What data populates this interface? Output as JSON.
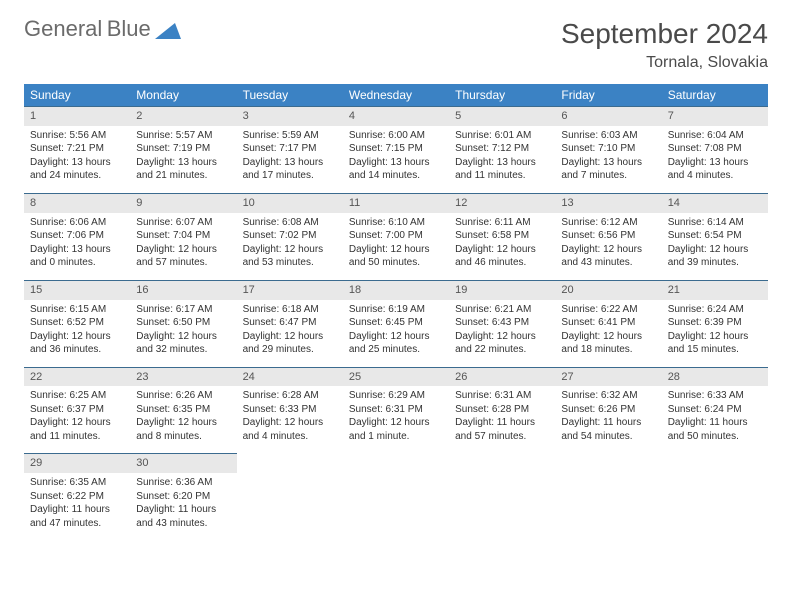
{
  "logo": {
    "word1": "General",
    "word2": "Blue"
  },
  "title": "September 2024",
  "location": "Tornala, Slovakia",
  "colors": {
    "header_bg": "#3b82c4",
    "header_text": "#ffffff",
    "daynum_bg": "#e8e8e8",
    "border": "#3b6b8f",
    "body_text": "#333333",
    "logo_gray": "#6b6b6b",
    "logo_blue": "#3b82c4"
  },
  "weekdays": [
    "Sunday",
    "Monday",
    "Tuesday",
    "Wednesday",
    "Thursday",
    "Friday",
    "Saturday"
  ],
  "rows": [
    [
      {
        "n": "1",
        "sr": "Sunrise: 5:56 AM",
        "ss": "Sunset: 7:21 PM",
        "d1": "Daylight: 13 hours",
        "d2": "and 24 minutes."
      },
      {
        "n": "2",
        "sr": "Sunrise: 5:57 AM",
        "ss": "Sunset: 7:19 PM",
        "d1": "Daylight: 13 hours",
        "d2": "and 21 minutes."
      },
      {
        "n": "3",
        "sr": "Sunrise: 5:59 AM",
        "ss": "Sunset: 7:17 PM",
        "d1": "Daylight: 13 hours",
        "d2": "and 17 minutes."
      },
      {
        "n": "4",
        "sr": "Sunrise: 6:00 AM",
        "ss": "Sunset: 7:15 PM",
        "d1": "Daylight: 13 hours",
        "d2": "and 14 minutes."
      },
      {
        "n": "5",
        "sr": "Sunrise: 6:01 AM",
        "ss": "Sunset: 7:12 PM",
        "d1": "Daylight: 13 hours",
        "d2": "and 11 minutes."
      },
      {
        "n": "6",
        "sr": "Sunrise: 6:03 AM",
        "ss": "Sunset: 7:10 PM",
        "d1": "Daylight: 13 hours",
        "d2": "and 7 minutes."
      },
      {
        "n": "7",
        "sr": "Sunrise: 6:04 AM",
        "ss": "Sunset: 7:08 PM",
        "d1": "Daylight: 13 hours",
        "d2": "and 4 minutes."
      }
    ],
    [
      {
        "n": "8",
        "sr": "Sunrise: 6:06 AM",
        "ss": "Sunset: 7:06 PM",
        "d1": "Daylight: 13 hours",
        "d2": "and 0 minutes."
      },
      {
        "n": "9",
        "sr": "Sunrise: 6:07 AM",
        "ss": "Sunset: 7:04 PM",
        "d1": "Daylight: 12 hours",
        "d2": "and 57 minutes."
      },
      {
        "n": "10",
        "sr": "Sunrise: 6:08 AM",
        "ss": "Sunset: 7:02 PM",
        "d1": "Daylight: 12 hours",
        "d2": "and 53 minutes."
      },
      {
        "n": "11",
        "sr": "Sunrise: 6:10 AM",
        "ss": "Sunset: 7:00 PM",
        "d1": "Daylight: 12 hours",
        "d2": "and 50 minutes."
      },
      {
        "n": "12",
        "sr": "Sunrise: 6:11 AM",
        "ss": "Sunset: 6:58 PM",
        "d1": "Daylight: 12 hours",
        "d2": "and 46 minutes."
      },
      {
        "n": "13",
        "sr": "Sunrise: 6:12 AM",
        "ss": "Sunset: 6:56 PM",
        "d1": "Daylight: 12 hours",
        "d2": "and 43 minutes."
      },
      {
        "n": "14",
        "sr": "Sunrise: 6:14 AM",
        "ss": "Sunset: 6:54 PM",
        "d1": "Daylight: 12 hours",
        "d2": "and 39 minutes."
      }
    ],
    [
      {
        "n": "15",
        "sr": "Sunrise: 6:15 AM",
        "ss": "Sunset: 6:52 PM",
        "d1": "Daylight: 12 hours",
        "d2": "and 36 minutes."
      },
      {
        "n": "16",
        "sr": "Sunrise: 6:17 AM",
        "ss": "Sunset: 6:50 PM",
        "d1": "Daylight: 12 hours",
        "d2": "and 32 minutes."
      },
      {
        "n": "17",
        "sr": "Sunrise: 6:18 AM",
        "ss": "Sunset: 6:47 PM",
        "d1": "Daylight: 12 hours",
        "d2": "and 29 minutes."
      },
      {
        "n": "18",
        "sr": "Sunrise: 6:19 AM",
        "ss": "Sunset: 6:45 PM",
        "d1": "Daylight: 12 hours",
        "d2": "and 25 minutes."
      },
      {
        "n": "19",
        "sr": "Sunrise: 6:21 AM",
        "ss": "Sunset: 6:43 PM",
        "d1": "Daylight: 12 hours",
        "d2": "and 22 minutes."
      },
      {
        "n": "20",
        "sr": "Sunrise: 6:22 AM",
        "ss": "Sunset: 6:41 PM",
        "d1": "Daylight: 12 hours",
        "d2": "and 18 minutes."
      },
      {
        "n": "21",
        "sr": "Sunrise: 6:24 AM",
        "ss": "Sunset: 6:39 PM",
        "d1": "Daylight: 12 hours",
        "d2": "and 15 minutes."
      }
    ],
    [
      {
        "n": "22",
        "sr": "Sunrise: 6:25 AM",
        "ss": "Sunset: 6:37 PM",
        "d1": "Daylight: 12 hours",
        "d2": "and 11 minutes."
      },
      {
        "n": "23",
        "sr": "Sunrise: 6:26 AM",
        "ss": "Sunset: 6:35 PM",
        "d1": "Daylight: 12 hours",
        "d2": "and 8 minutes."
      },
      {
        "n": "24",
        "sr": "Sunrise: 6:28 AM",
        "ss": "Sunset: 6:33 PM",
        "d1": "Daylight: 12 hours",
        "d2": "and 4 minutes."
      },
      {
        "n": "25",
        "sr": "Sunrise: 6:29 AM",
        "ss": "Sunset: 6:31 PM",
        "d1": "Daylight: 12 hours",
        "d2": "and 1 minute."
      },
      {
        "n": "26",
        "sr": "Sunrise: 6:31 AM",
        "ss": "Sunset: 6:28 PM",
        "d1": "Daylight: 11 hours",
        "d2": "and 57 minutes."
      },
      {
        "n": "27",
        "sr": "Sunrise: 6:32 AM",
        "ss": "Sunset: 6:26 PM",
        "d1": "Daylight: 11 hours",
        "d2": "and 54 minutes."
      },
      {
        "n": "28",
        "sr": "Sunrise: 6:33 AM",
        "ss": "Sunset: 6:24 PM",
        "d1": "Daylight: 11 hours",
        "d2": "and 50 minutes."
      }
    ],
    [
      {
        "n": "29",
        "sr": "Sunrise: 6:35 AM",
        "ss": "Sunset: 6:22 PM",
        "d1": "Daylight: 11 hours",
        "d2": "and 47 minutes."
      },
      {
        "n": "30",
        "sr": "Sunrise: 6:36 AM",
        "ss": "Sunset: 6:20 PM",
        "d1": "Daylight: 11 hours",
        "d2": "and 43 minutes."
      },
      null,
      null,
      null,
      null,
      null
    ]
  ]
}
